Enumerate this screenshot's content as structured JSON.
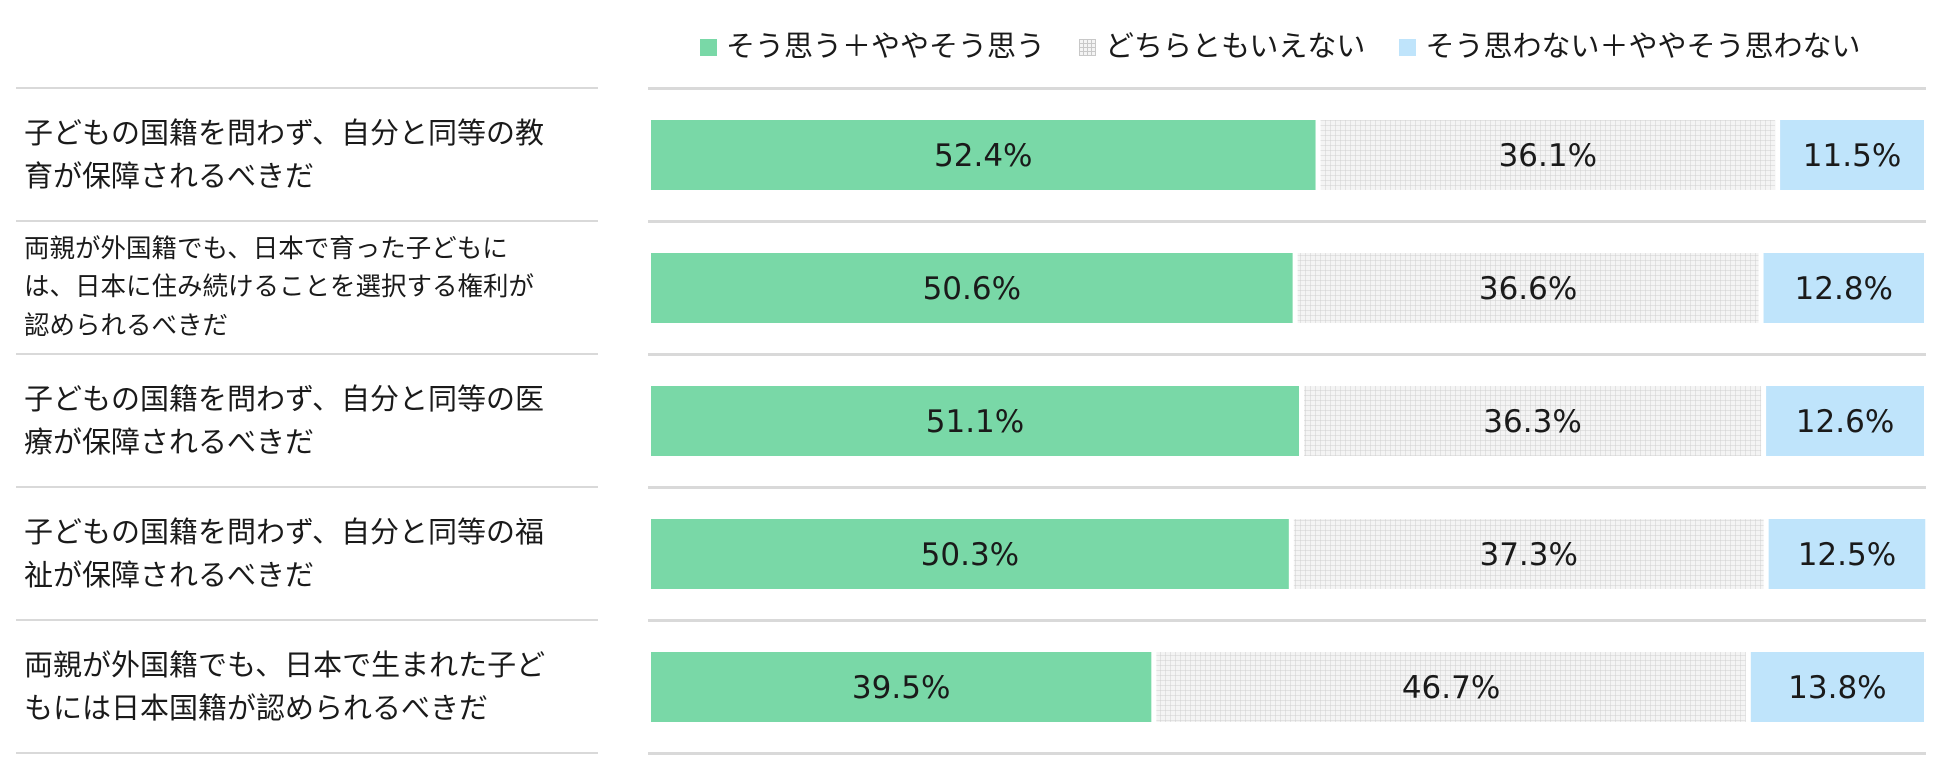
{
  "chart_data": {
    "type": "bar",
    "orientation": "horizontal",
    "stacked": true,
    "percent_stacked": true,
    "title": "",
    "xlabel": "",
    "ylabel": "",
    "xlim": [
      0,
      100
    ],
    "grid": false,
    "legend_position": "top",
    "categories": [
      "子どもの国籍を問わず、自分と同等の教育が保障されるべきだ",
      "両親が外国籍でも、日本で育った子どもには、日本に住み続けることを選択する権利が認められるべきだ",
      "子どもの国籍を問わず、自分と同等の医療が保障されるべきだ",
      "子どもの国籍を問わず、自分と同等の福祉が保障されるべきだ",
      "両親が外国籍でも、日本で生まれた子どもには日本国籍が認められるべきだ"
    ],
    "category_lines": [
      [
        "子どもの国籍を問わず、自分と同等の教",
        "育が保障されるべきだ"
      ],
      [
        "両親が外国籍でも、日本で育った子どもに",
        "は、日本に住み続けることを選択する権利が",
        "認められるべきだ"
      ],
      [
        "子どもの国籍を問わず、自分と同等の医",
        "療が保障されるべきだ"
      ],
      [
        "子どもの国籍を問わず、自分と同等の福",
        "祉が保障されるべきだ"
      ],
      [
        "両親が外国籍でも、日本で生まれた子ど",
        "もには日本国籍が認められるべきだ"
      ]
    ],
    "series": [
      {
        "name": "そう思う＋ややそう思う",
        "color": "#79d8a7",
        "pattern": "solid",
        "values": [
          52.4,
          50.6,
          51.1,
          50.3,
          39.5
        ],
        "labels": [
          "52.4%",
          "50.6%",
          "51.1%",
          "50.3%",
          "39.5%"
        ]
      },
      {
        "name": "どちらともいえない",
        "color": "#f4f4f4",
        "pattern": "grid",
        "values": [
          36.1,
          36.6,
          36.3,
          37.3,
          46.7
        ],
        "labels": [
          "36.1%",
          "36.6%",
          "36.3%",
          "37.3%",
          "46.7%"
        ]
      },
      {
        "name": "そう思わない＋ややそう思わない",
        "color": "#bfe4fb",
        "pattern": "solid",
        "values": [
          11.5,
          12.8,
          12.6,
          12.5,
          13.8
        ],
        "labels": [
          "11.5%",
          "12.8%",
          "12.6%",
          "12.5%",
          "13.8%"
        ]
      }
    ]
  }
}
